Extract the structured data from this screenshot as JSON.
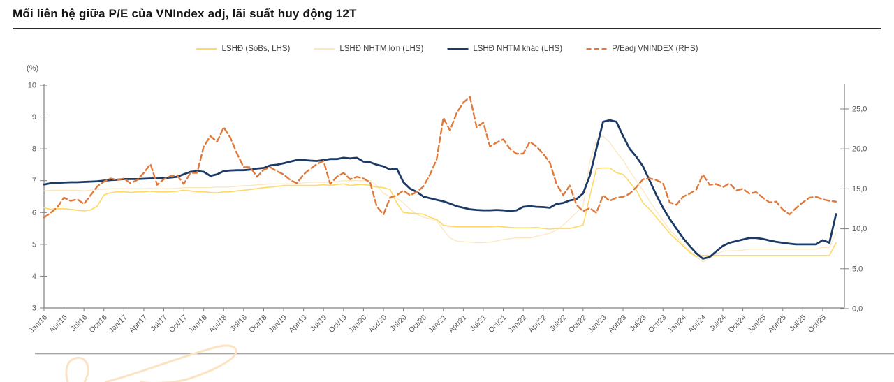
{
  "title": "Mối liên hệ giữa P/E của VNIndex adj, lãi suất huy động 12T",
  "colors": {
    "sobs": "#FFD966",
    "nhtm_lon": "#FBE8C0",
    "nhtm_khac": "#1C3A66",
    "pe": "#E0793A",
    "axis": "#808080",
    "tick_label": "#595959",
    "title_text": "#141414"
  },
  "legend": [
    {
      "label": "LSHĐ (SoBs, LHS)",
      "color": "#FFD966",
      "style": "solid",
      "weight": 2
    },
    {
      "label": "LSHĐ NHTM lớn (LHS)",
      "color": "#FBE8C0",
      "style": "solid",
      "weight": 2
    },
    {
      "label": "LSHĐ NHTM khác (LHS)",
      "color": "#1C3A66",
      "style": "solid",
      "weight": 3
    },
    {
      "label": "P/Eadj VNINDEX (RHS)",
      "color": "#E0793A",
      "style": "dashed",
      "weight": 3
    }
  ],
  "axes": {
    "left_title": "(%)",
    "left_ticks": [
      "10",
      "9",
      "8",
      "7",
      "6",
      "5",
      "4",
      "3"
    ],
    "left_tick_values": [
      10,
      9,
      8,
      7,
      6,
      5,
      4,
      3
    ],
    "left_range": [
      3,
      10
    ],
    "right_ticks": [
      "25,0",
      "20,0",
      "15,0",
      "10,0",
      "5,0",
      "0,0"
    ],
    "right_tick_values": [
      25,
      20,
      15,
      10,
      5,
      0
    ],
    "right_range": [
      0,
      25
    ],
    "x_ticks": [
      "Jan/16",
      "Apr/16",
      "Jul/16",
      "Oct/16",
      "Jan/17",
      "Apr/17",
      "Jul/17",
      "Oct/17",
      "Jan/18",
      "Apr/18",
      "Jul/18",
      "Oct/18",
      "Jan/19",
      "Apr/19",
      "Jul/19",
      "Oct/19",
      "Jan/20",
      "Apr/20",
      "Jul/20",
      "Oct/20",
      "Jan/21",
      "Apr/21",
      "Jul/21",
      "Oct/21",
      "Jan/22",
      "Apr/22",
      "Jul/22",
      "Oct/22",
      "Jan/23",
      "Apr/23",
      "Jul/23",
      "Oct/23",
      "Jan/24",
      "Apr/24",
      "Jul/24",
      "Oct/24",
      "Jan/25",
      "Apr/25",
      "Jul/25",
      "Oct/25"
    ]
  },
  "chart_data": {
    "type": "line",
    "title": "Mối liên hệ giữa P/E của VNIndex adj, lãi suất huy động 12T",
    "x_unit": "month",
    "x_start": "Jan/16",
    "x_end": "Dec/25",
    "grid": false,
    "legend_position": "top",
    "ylabel_left": "(%)",
    "ylim_left": [
      3,
      10
    ],
    "ylim_right": [
      0,
      25
    ],
    "series": [
      {
        "name": "LSHĐ (SoBs, LHS)",
        "axis": "left",
        "values": [
          6.15,
          6.1,
          6.12,
          6.12,
          6.1,
          6.07,
          6.05,
          6.08,
          6.2,
          6.55,
          6.62,
          6.65,
          6.65,
          6.63,
          6.65,
          6.65,
          6.67,
          6.65,
          6.65,
          6.65,
          6.67,
          6.7,
          6.68,
          6.65,
          6.65,
          6.63,
          6.62,
          6.65,
          6.65,
          6.68,
          6.7,
          6.72,
          6.75,
          6.78,
          6.8,
          6.82,
          6.85,
          6.85,
          6.85,
          6.85,
          6.85,
          6.85,
          6.87,
          6.85,
          6.88,
          6.9,
          6.85,
          6.87,
          6.88,
          6.85,
          6.8,
          6.78,
          6.72,
          6.3,
          6.0,
          5.98,
          5.97,
          5.95,
          5.85,
          5.78,
          5.6,
          5.57,
          5.55,
          5.55,
          5.55,
          5.55,
          5.55,
          5.55,
          5.57,
          5.55,
          5.53,
          5.52,
          5.52,
          5.52,
          5.53,
          5.5,
          5.48,
          5.5,
          5.5,
          5.5,
          5.55,
          5.6,
          6.5,
          7.38,
          7.4,
          7.4,
          7.25,
          7.2,
          6.95,
          6.7,
          6.3,
          6.1,
          5.85,
          5.6,
          5.35,
          5.15,
          4.95,
          4.75,
          4.62,
          4.65,
          4.65,
          4.65,
          4.65,
          4.65,
          4.65,
          4.65,
          4.65,
          4.65,
          4.65,
          4.65,
          4.65,
          4.65,
          4.65,
          4.65,
          4.65,
          4.65,
          4.65,
          4.65,
          4.65,
          5.05
        ]
      },
      {
        "name": "LSHĐ NHTM lớn (LHS)",
        "axis": "left",
        "values": [
          6.68,
          6.7,
          6.7,
          6.7,
          6.7,
          6.7,
          6.68,
          6.7,
          6.72,
          6.73,
          6.75,
          6.75,
          6.75,
          6.75,
          6.75,
          6.75,
          6.76,
          6.75,
          6.75,
          6.75,
          6.76,
          6.78,
          6.78,
          6.78,
          6.78,
          6.78,
          6.8,
          6.8,
          6.8,
          6.82,
          6.85,
          6.85,
          6.87,
          6.88,
          6.9,
          6.9,
          6.9,
          6.9,
          6.92,
          6.93,
          6.95,
          6.95,
          6.95,
          6.95,
          6.97,
          7.0,
          7.0,
          7.0,
          7.0,
          7.0,
          6.85,
          6.6,
          6.5,
          6.45,
          6.3,
          6.1,
          5.95,
          5.85,
          5.8,
          5.75,
          5.45,
          5.2,
          5.1,
          5.08,
          5.07,
          5.05,
          5.05,
          5.07,
          5.1,
          5.15,
          5.18,
          5.2,
          5.2,
          5.2,
          5.25,
          5.3,
          5.35,
          5.45,
          5.6,
          5.8,
          6.0,
          6.2,
          7.6,
          8.3,
          8.4,
          8.2,
          7.9,
          7.65,
          7.3,
          7.0,
          6.7,
          6.35,
          6.05,
          5.75,
          5.45,
          5.25,
          5.0,
          4.8,
          4.6,
          4.45,
          4.55,
          4.7,
          4.78,
          4.8,
          4.8,
          4.82,
          4.85,
          4.85,
          4.85,
          4.85,
          4.85,
          4.85,
          4.85,
          4.85,
          4.85,
          4.85,
          4.85,
          4.9,
          4.9,
          5.35
        ]
      },
      {
        "name": "LSHĐ NHTM khác (LHS)",
        "axis": "left",
        "values": [
          6.88,
          6.92,
          6.93,
          6.94,
          6.95,
          6.95,
          6.96,
          6.97,
          6.98,
          7.0,
          7.02,
          7.03,
          7.05,
          7.05,
          7.05,
          7.06,
          7.07,
          7.07,
          7.08,
          7.1,
          7.12,
          7.2,
          7.28,
          7.3,
          7.28,
          7.15,
          7.2,
          7.3,
          7.32,
          7.33,
          7.33,
          7.35,
          7.38,
          7.4,
          7.48,
          7.5,
          7.55,
          7.6,
          7.65,
          7.65,
          7.63,
          7.62,
          7.65,
          7.68,
          7.68,
          7.72,
          7.7,
          7.72,
          7.6,
          7.58,
          7.5,
          7.45,
          7.35,
          7.38,
          6.95,
          6.75,
          6.65,
          6.5,
          6.45,
          6.4,
          6.35,
          6.28,
          6.2,
          6.15,
          6.1,
          6.08,
          6.07,
          6.07,
          6.08,
          6.07,
          6.05,
          6.07,
          6.18,
          6.2,
          6.18,
          6.17,
          6.15,
          6.27,
          6.3,
          6.38,
          6.42,
          6.6,
          7.15,
          8.0,
          8.85,
          8.9,
          8.85,
          8.4,
          8.0,
          7.75,
          7.45,
          7.0,
          6.55,
          6.15,
          5.8,
          5.5,
          5.2,
          4.95,
          4.72,
          4.55,
          4.6,
          4.78,
          4.95,
          5.05,
          5.1,
          5.15,
          5.2,
          5.2,
          5.17,
          5.12,
          5.08,
          5.05,
          5.02,
          5.0,
          5.0,
          5.0,
          5.0,
          5.13,
          5.05,
          5.95
        ]
      },
      {
        "name": "P/Eadj VNINDEX (RHS)",
        "axis": "right",
        "values": [
          11.4,
          12.0,
          12.7,
          13.9,
          13.5,
          13.7,
          13.1,
          14.2,
          15.3,
          15.9,
          16.3,
          16.1,
          16.3,
          15.7,
          16.1,
          17.0,
          18.1,
          15.5,
          16.2,
          16.6,
          16.7,
          15.6,
          17.0,
          17.0,
          20.3,
          21.6,
          20.9,
          22.7,
          21.4,
          19.4,
          17.7,
          17.7,
          16.5,
          17.4,
          17.7,
          17.2,
          16.8,
          16.1,
          15.7,
          16.8,
          17.5,
          18.1,
          18.5,
          15.6,
          16.5,
          17.0,
          16.2,
          16.5,
          16.3,
          15.8,
          12.8,
          11.8,
          13.9,
          14.2,
          14.8,
          14.2,
          14.6,
          15.3,
          16.8,
          18.7,
          23.9,
          22.3,
          24.5,
          25.8,
          26.5,
          22.7,
          23.3,
          20.3,
          20.8,
          21.2,
          20.0,
          19.4,
          19.4,
          20.9,
          20.3,
          19.4,
          18.3,
          15.6,
          14.2,
          15.4,
          13.0,
          12.2,
          12.6,
          12.0,
          14.2,
          13.5,
          13.9,
          14.0,
          14.4,
          15.2,
          16.2,
          16.3,
          16.1,
          15.7,
          13.3,
          13.0,
          14.0,
          14.4,
          14.9,
          16.8,
          15.5,
          15.6,
          15.2,
          15.7,
          14.8,
          15.0,
          14.4,
          14.6,
          13.9,
          13.3,
          13.4,
          12.4,
          11.8,
          12.6,
          13.3,
          13.9,
          14.0,
          13.7,
          13.5,
          13.4
        ]
      }
    ]
  }
}
